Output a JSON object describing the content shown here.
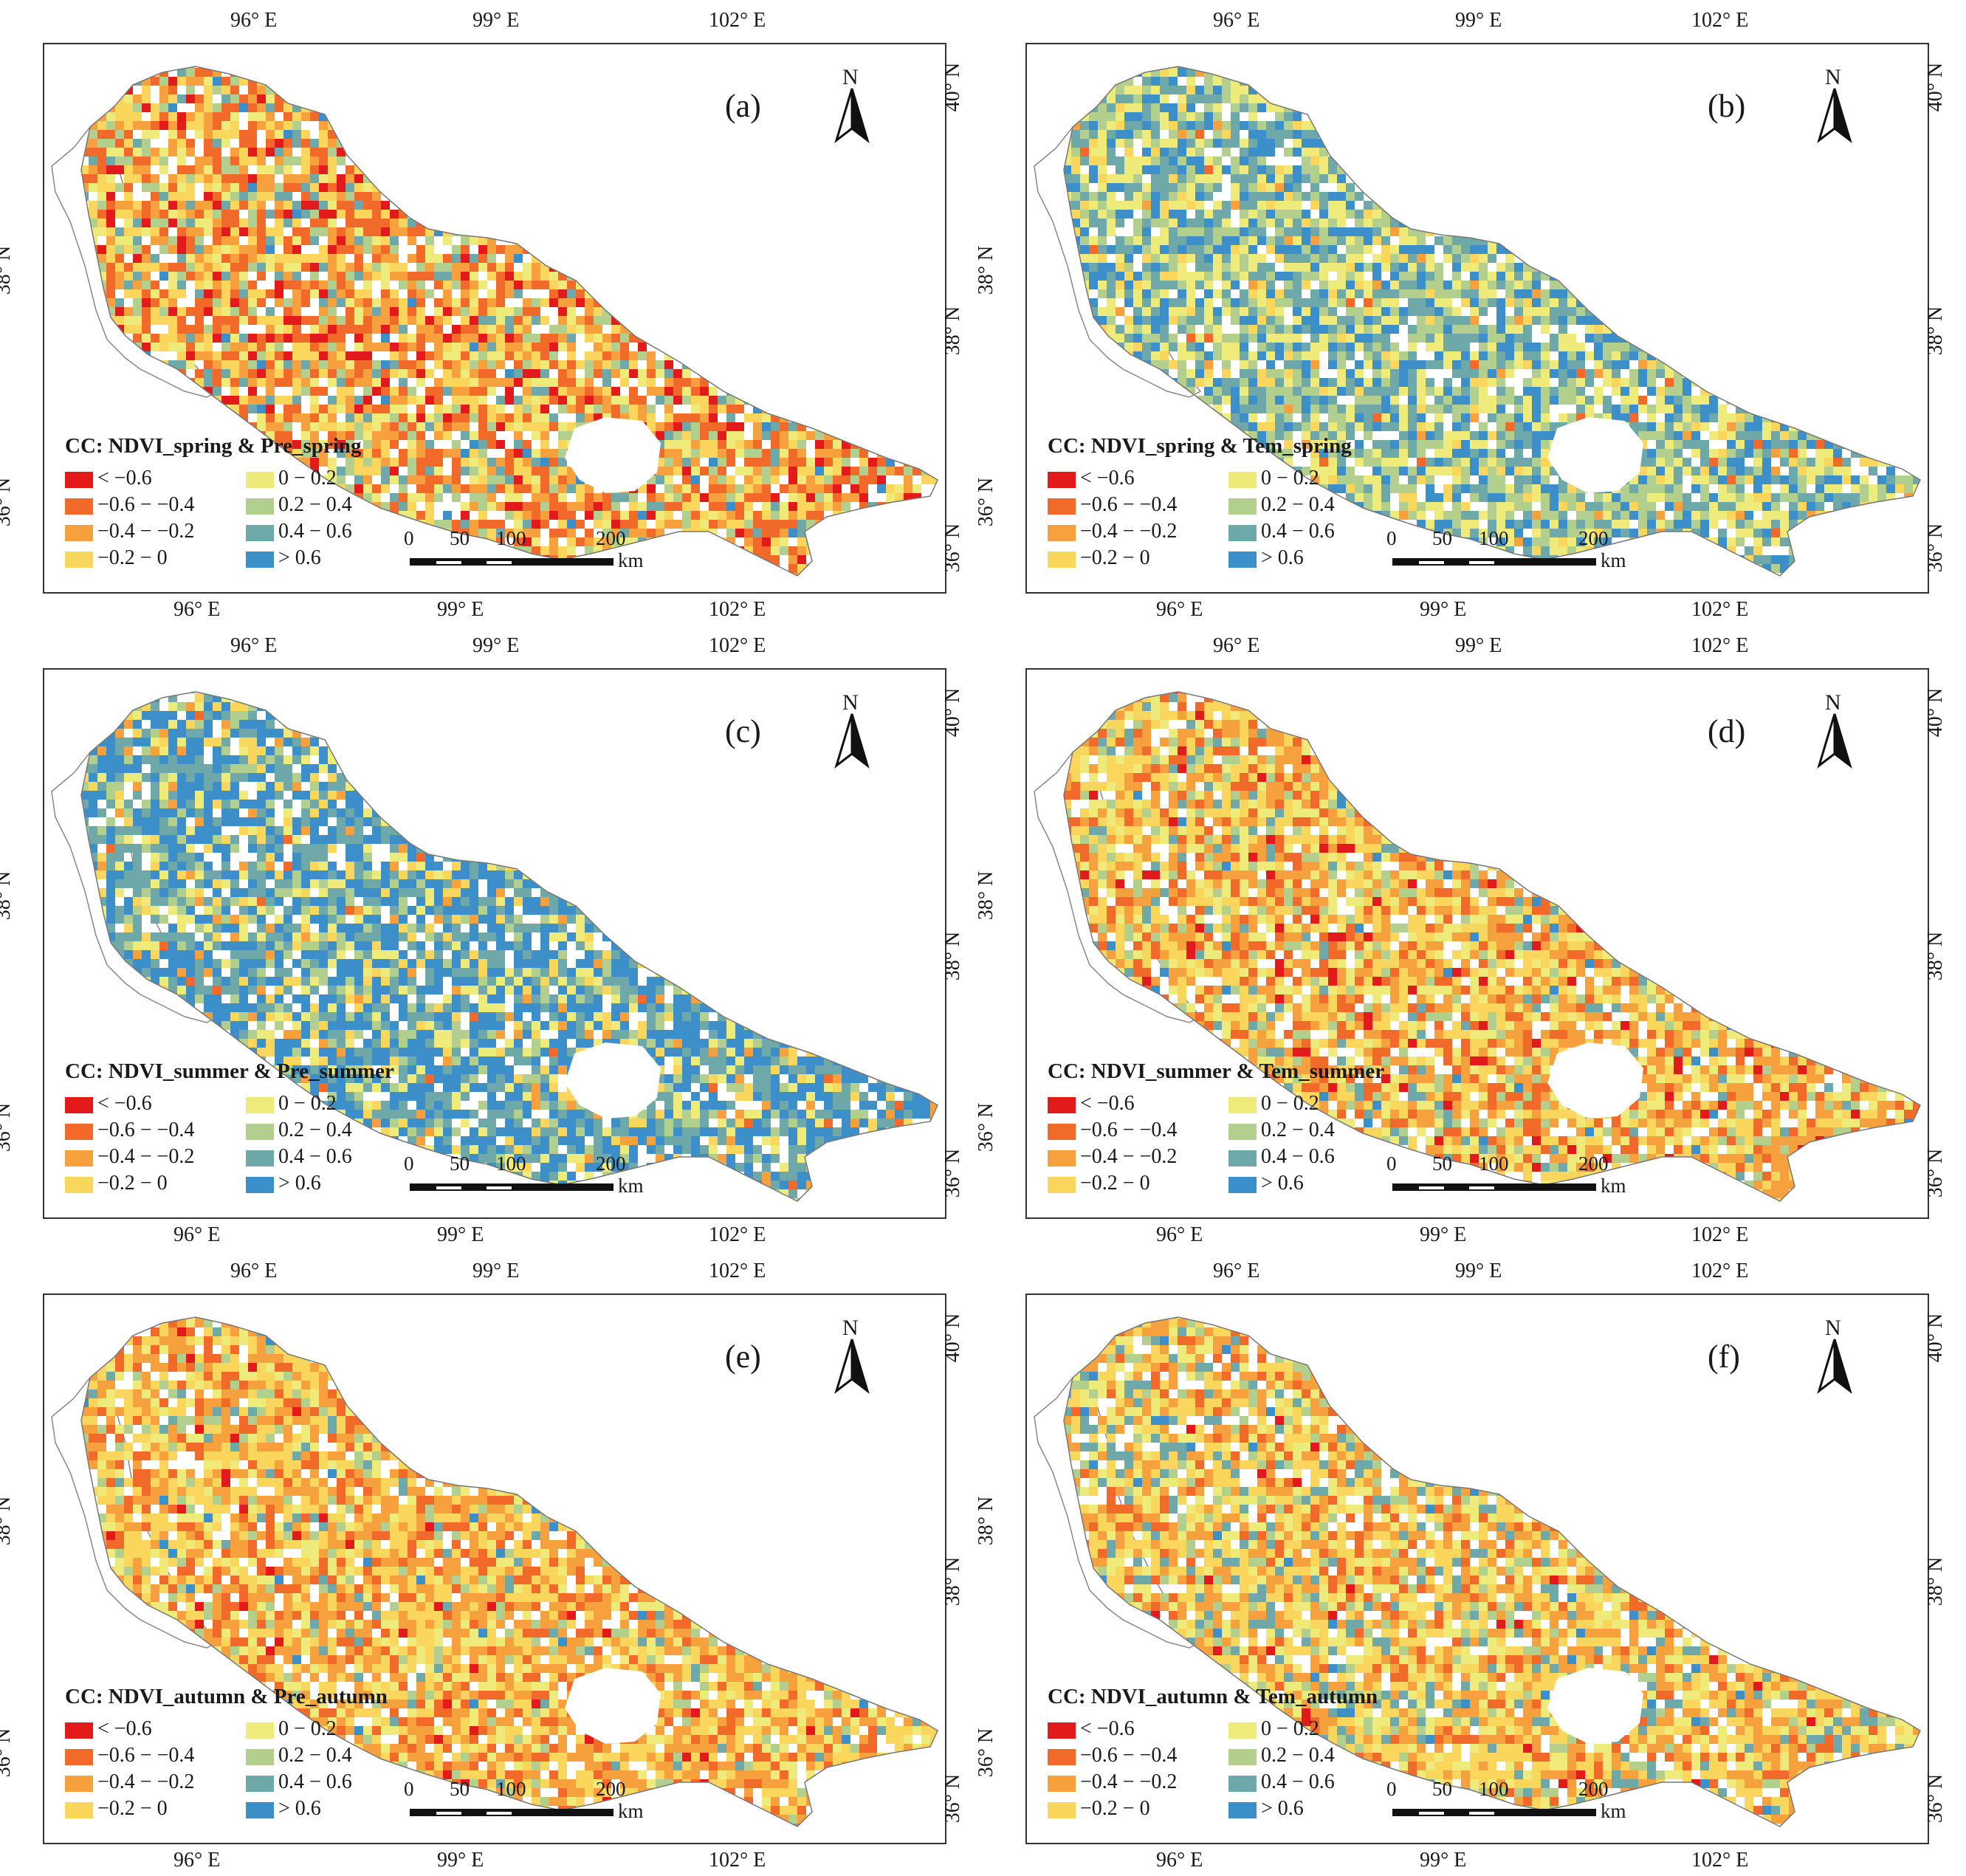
{
  "legend": {
    "items": [
      {
        "label": "< −0.6",
        "color": "#e31a1c"
      },
      {
        "label": "−0.6 − −0.4",
        "color": "#f26a2a"
      },
      {
        "label": "−0.4 − −0.2",
        "color": "#f7a13e"
      },
      {
        "label": "−0.2 − 0",
        "color": "#fbd65c"
      },
      {
        "label": "0 − 0.2",
        "color": "#eeeb7a"
      },
      {
        "label": "0.2 − 0.4",
        "color": "#b3cf8e"
      },
      {
        "label": "0.4 − 0.6",
        "color": "#6fa8a8"
      },
      {
        "label": "> 0.6",
        "color": "#3c8fc9"
      }
    ]
  },
  "scale": {
    "ticks": [
      "0",
      "50",
      "100",
      "200"
    ],
    "unit": "km"
  },
  "north_label": "N",
  "lon_top": [
    "96° E",
    "99° E",
    "102° E"
  ],
  "lon_bottom": [
    "96° E",
    "99° E",
    "102° E"
  ],
  "lat_left": [
    "38° N",
    "36° N"
  ],
  "lat_right": [
    "40° N",
    "38° N",
    "36° N"
  ],
  "panels": [
    {
      "label": "(a)",
      "title": "CC: NDVI_spring & Pre_spring",
      "dominant": [
        0.1,
        0.22,
        0.18,
        0.18,
        0.12,
        0.1,
        0.08,
        0.02
      ]
    },
    {
      "label": "(b)",
      "title": "CC: NDVI_spring & Tem_spring",
      "dominant": [
        0.0,
        0.01,
        0.02,
        0.08,
        0.22,
        0.22,
        0.25,
        0.2
      ]
    },
    {
      "label": "(c)",
      "title": "CC: NDVI_summer & Pre_summer",
      "dominant": [
        0.0,
        0.02,
        0.05,
        0.08,
        0.1,
        0.1,
        0.25,
        0.4
      ]
    },
    {
      "label": "(d)",
      "title": "CC: NDVI_summer & Tem_summer",
      "dominant": [
        0.04,
        0.16,
        0.25,
        0.25,
        0.15,
        0.08,
        0.05,
        0.02
      ]
    },
    {
      "label": "(e)",
      "title": "CC: NDVI_autumn & Pre_autumn",
      "dominant": [
        0.02,
        0.18,
        0.3,
        0.28,
        0.12,
        0.06,
        0.03,
        0.01
      ]
    },
    {
      "label": "(f)",
      "title": "CC: NDVI_autumn & Tem_autumn",
      "dominant": [
        0.01,
        0.1,
        0.25,
        0.28,
        0.16,
        0.08,
        0.1,
        0.02
      ]
    }
  ]
}
